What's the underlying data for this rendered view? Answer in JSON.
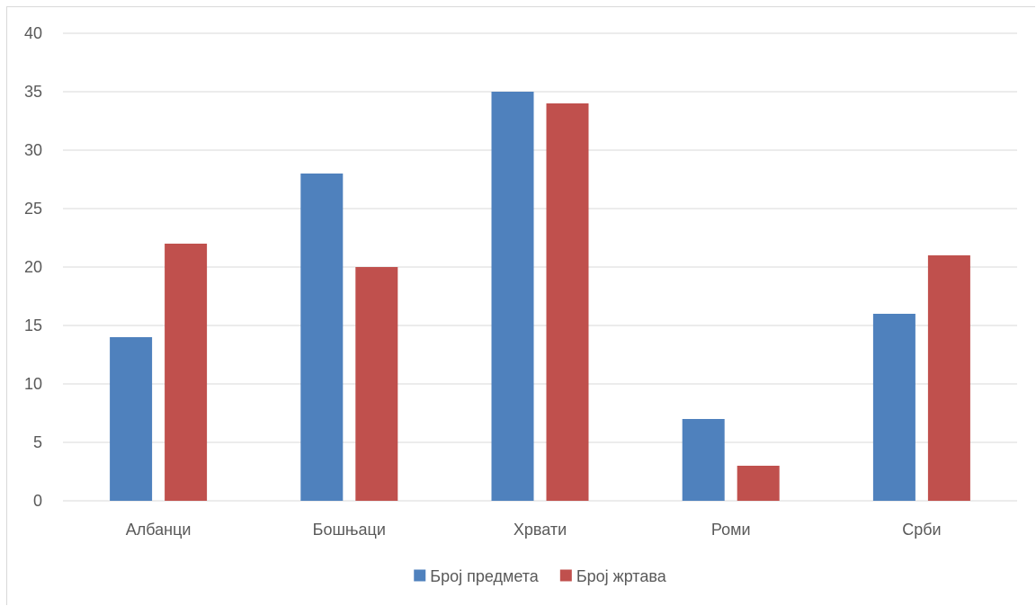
{
  "chart_data": {
    "type": "bar",
    "categories": [
      "Албанци",
      "Бошњаци",
      "Хрвати",
      "Роми",
      "Срби"
    ],
    "series": [
      {
        "name": "Број предмета",
        "values": [
          14,
          28,
          35,
          7,
          16
        ],
        "color": "#4f81bd"
      },
      {
        "name": "Број жртава",
        "values": [
          22,
          20,
          34,
          3,
          21
        ],
        "color": "#c0504d"
      }
    ],
    "ylim": [
      0,
      40
    ],
    "yticks": [
      0,
      5,
      10,
      15,
      20,
      25,
      30,
      35,
      40
    ],
    "grid": true,
    "legend_position": "bottom",
    "gridline_color": "#d9d9d9",
    "axis_color": "#d9d9d9",
    "text_color": "#595959"
  }
}
